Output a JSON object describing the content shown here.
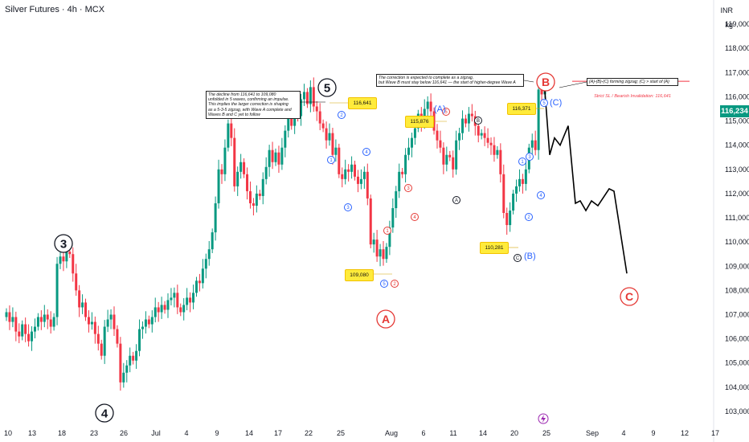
{
  "header": {
    "title": "Silver Futures · 4h · MCX",
    "currency": "INR",
    "unit": "kg"
  },
  "last_price": "116,234",
  "stop_loss_label": "Strict SL / Bearish Invalidation: 116,641",
  "notes": {
    "impulse": "The decline from 116,641 to 109,080\nunfolded in 5 waves, confirming an impulse.\nThis implies the larger correction is shaping\nas a 5-3-5 zigzag, with Wave A complete and\nWaves B and C yet to follow",
    "zigzag": "The correction is expected to complete as a zigzag,\nbut Wave B must stay below 116,641 — the start of higher-degree Wave A",
    "structure": "(A)-(B)-(C) forming zigzag; (C) > start of (A)"
  },
  "price_tags": {
    "p1": "116,641",
    "p2": "109,080",
    "p3": "115,876",
    "p4": "116,371",
    "p5": "110,281"
  },
  "labels": {
    "w3": "3",
    "w4": "4",
    "w5": "5",
    "bigA": "A",
    "bigB": "B",
    "bigC": "C",
    "pA": "(A)",
    "pB": "(B)",
    "pC": "(C)",
    "cA": "A",
    "cB": "B",
    "cC": "C",
    "n1": "1",
    "n2": "2",
    "n3": "3",
    "n4": "4",
    "n5": "5"
  },
  "colors": {
    "up": "#089981",
    "down": "#f23645",
    "blue": "#2962ff",
    "red": "#e53935",
    "black": "#131722",
    "grid": "#f0f3fa",
    "axis_text": "#131722"
  },
  "icon": "lightning-icon",
  "chart_data": {
    "type": "candlestick",
    "title": "Silver Futures · 4h · MCX",
    "ylim": [
      102600,
      120000
    ],
    "y_ticks": [
      "119,000",
      "118,000",
      "117,000",
      "116,000",
      "115,000",
      "114,000",
      "113,000",
      "112,000",
      "111,000",
      "110,000",
      "109,000",
      "108,000",
      "107,000",
      "106,000",
      "105,000",
      "104,000",
      "103,000"
    ],
    "x_ticks": [
      "10",
      "13",
      "18",
      "23",
      "26",
      "Jul",
      "4",
      "9",
      "14",
      "17",
      "22",
      "25",
      "Aug",
      "6",
      "11",
      "14",
      "20",
      "25",
      "Sep",
      "4",
      "9",
      "12",
      "17"
    ],
    "key_prices": {
      "high_wave5": 116641,
      "low_waveA": 109080,
      "high_waveA_paren": 115876,
      "low_waveB_paren": 110281,
      "high_waveC_paren": 116371,
      "last": 116234
    },
    "close_path": [
      107100,
      106700,
      106900,
      106300,
      106100,
      106600,
      106200,
      105900,
      106300,
      106500,
      106900,
      106700,
      107000,
      106800,
      106500,
      106900,
      109100,
      109400,
      109200,
      109600,
      109500,
      108700,
      108000,
      107300,
      107500,
      106900,
      106600,
      106700,
      106200,
      105800,
      105300,
      106500,
      106800,
      107000,
      106400,
      105800,
      104200,
      104600,
      104900,
      105300,
      105100,
      105500,
      106400,
      106500,
      106800,
      106600,
      106900,
      107300,
      107100,
      107400,
      107200,
      107600,
      107700,
      107900,
      107300,
      107100,
      107400,
      107700,
      107500,
      107900,
      108400,
      108300,
      108900,
      109300,
      109700,
      110400,
      111600,
      113000,
      112800,
      113900,
      114900,
      114300,
      112300,
      112900,
      113300,
      112800,
      112100,
      111600,
      111500,
      112000,
      111900,
      112600,
      113100,
      113800,
      113300,
      113700,
      113200,
      113900,
      114600,
      115200,
      114800,
      115500,
      115200,
      115900,
      116200,
      115700,
      116400,
      115600,
      115400,
      114900,
      114700,
      114200,
      114500,
      113600,
      113900,
      112800,
      112600,
      113000,
      112900,
      113200,
      112700,
      112400,
      112600,
      112900,
      111800,
      109900,
      110100,
      109400,
      109700,
      109300,
      109800,
      110600,
      111400,
      112100,
      112900,
      112800,
      113600,
      113900,
      114300,
      114700,
      115300,
      114900,
      115500,
      115800,
      115400,
      114600,
      114200,
      113900,
      113200,
      113600,
      113500,
      113000,
      114200,
      114500,
      115100,
      114900,
      115300,
      115200,
      114800,
      114400,
      114500,
      114300,
      114100,
      114000,
      113600,
      113800,
      112800,
      111200,
      110700,
      111300,
      112000,
      112300,
      112600,
      112400,
      113000,
      113900,
      114200,
      113800,
      116300,
      116100,
      116234
    ],
    "forecast_path": [
      [
        116234,
        "now"
      ],
      [
        113600,
        "f1"
      ],
      [
        114300,
        "f2"
      ],
      [
        114000,
        "f3"
      ],
      [
        114800,
        "f4"
      ],
      [
        111600,
        "f5"
      ],
      [
        111700,
        "f6"
      ],
      [
        111300,
        "f7"
      ],
      [
        111700,
        "f8"
      ],
      [
        111500,
        "f9"
      ],
      [
        112200,
        "f10"
      ],
      [
        112100,
        "f11"
      ],
      [
        108700,
        "C"
      ]
    ]
  }
}
